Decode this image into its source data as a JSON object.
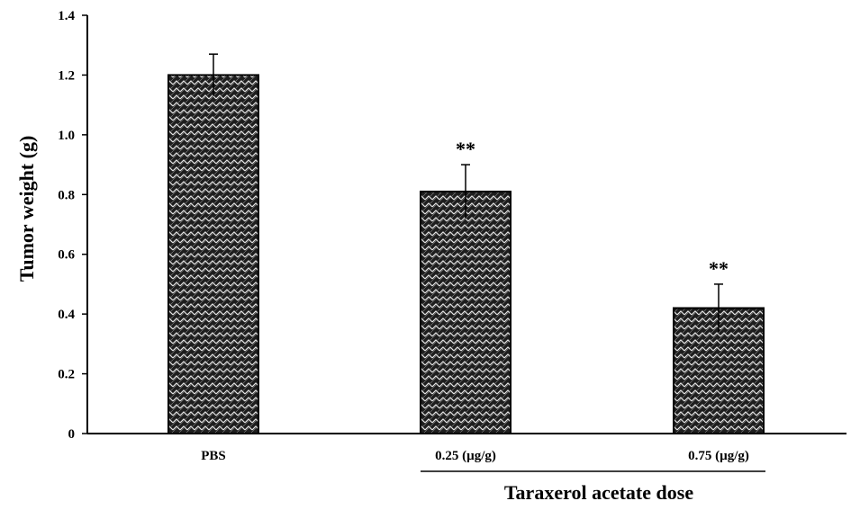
{
  "chart_data": {
    "type": "bar",
    "categories": [
      "PBS",
      "0.25 (µg/g)",
      "0.75 (µg/g)"
    ],
    "values": [
      1.2,
      0.81,
      0.42
    ],
    "errors": [
      0.07,
      0.09,
      0.08
    ],
    "significance": [
      "",
      "**",
      "**"
    ],
    "title": "",
    "xlabel": "",
    "ylabel": "Tumor weight (g)",
    "group_label": "Taraxerol acetate dose",
    "group_covers": [
      "0.25 (µg/g)",
      "0.75 (µg/g)"
    ],
    "ylim": [
      0,
      1.4
    ],
    "yticks": [
      0,
      0.2,
      0.4,
      0.6,
      0.8,
      1.0,
      1.2,
      1.4
    ],
    "ytick_labels": [
      "0",
      "0.2",
      "0.4",
      "0.6",
      "0.8",
      "1.0",
      "1.2",
      "1.4"
    ],
    "grid": false,
    "legend": "none",
    "bar_fill": "crosshatch pattern",
    "colors": {
      "bar": "#1e1e1e",
      "pattern_line": "#e6e6e6",
      "axis": "#000000"
    }
  }
}
